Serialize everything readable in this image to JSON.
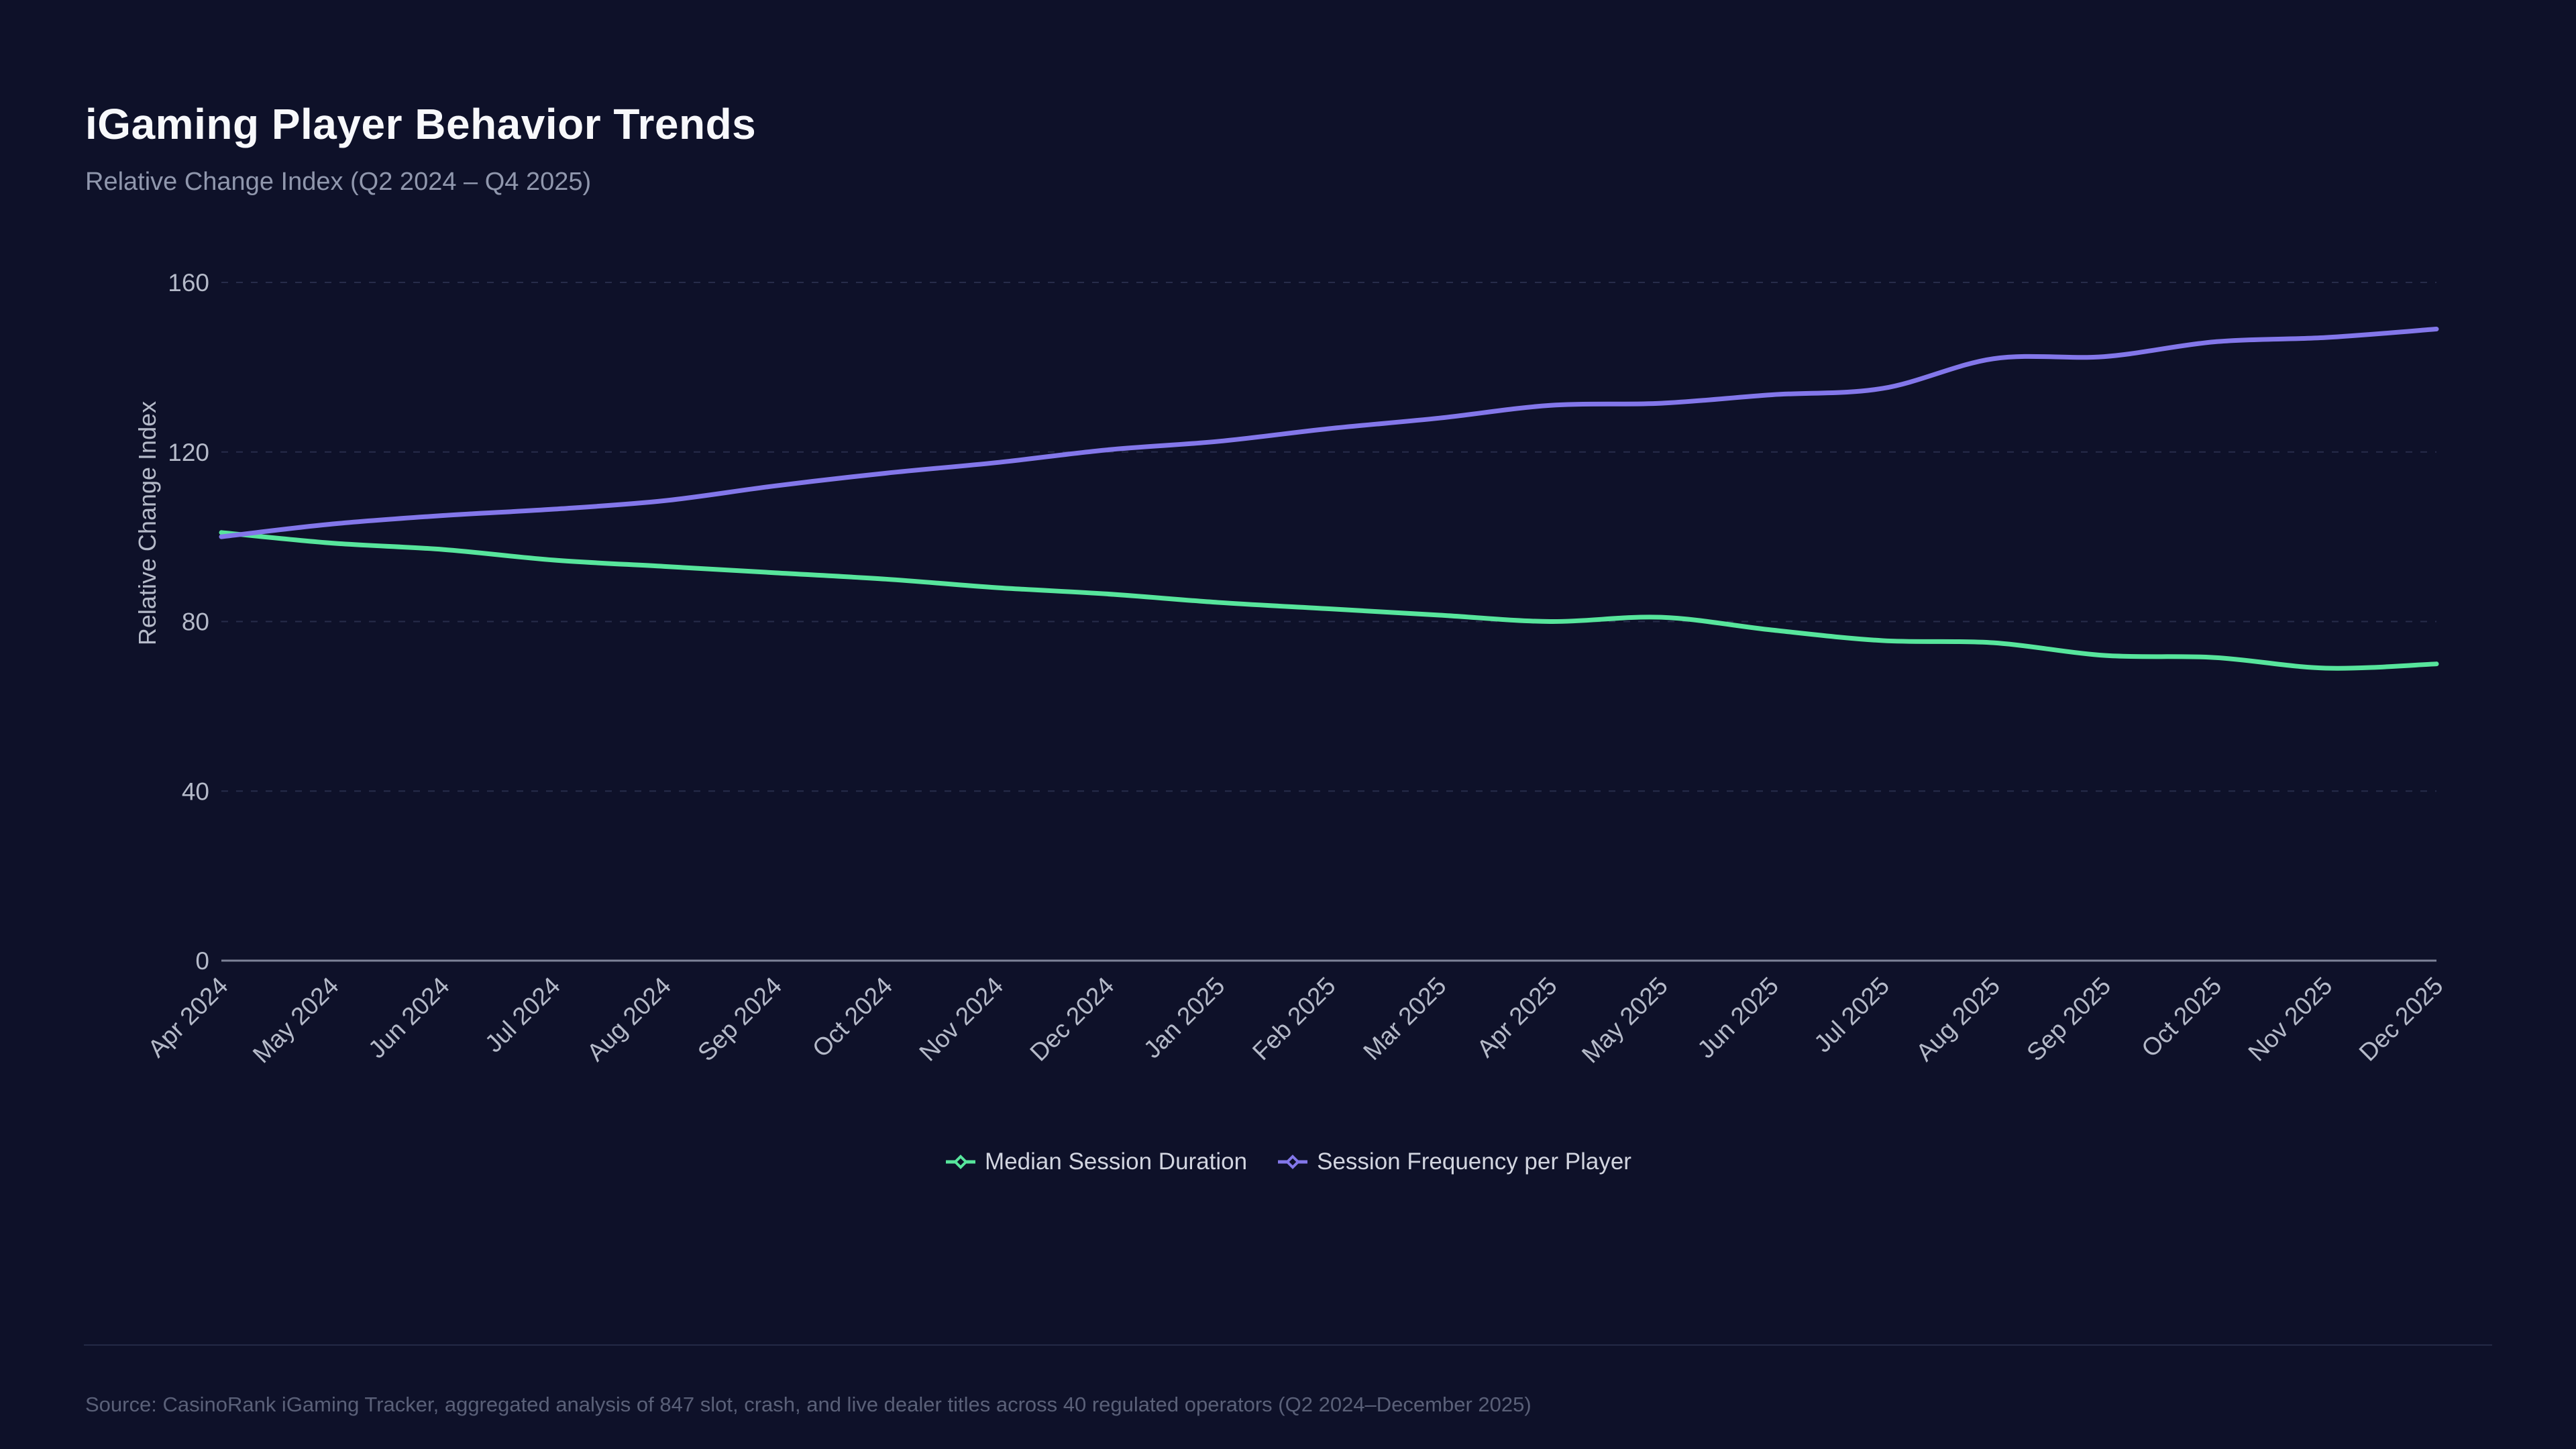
{
  "header": {
    "title": "iGaming Player Behavior Trends",
    "subtitle": "Relative Change Index (Q2 2024 – Q4 2025)"
  },
  "footer": {
    "source": "Source: CasinoRank iGaming Tracker, aggregated analysis of 847 slot, crash, and live dealer titles across 40 regulated operators (Q2 2024–December 2025)"
  },
  "theme": {
    "background": "#0e1129",
    "title_color": "#f7f8fb",
    "subtitle_color": "#9097ad",
    "axis_label_color": "#b5bac9",
    "axis_line_color": "#7d8298",
    "grid_line_color": "#272c4a",
    "legend_text_color": "#d2d5e0",
    "source_color": "#5a6078",
    "divider_color": "#242946"
  },
  "chart_data": {
    "type": "line",
    "title": "iGaming Player Behavior Trends",
    "subtitle": "Relative Change Index (Q2 2024 – Q4 2025)",
    "xlabel": "",
    "ylabel": "Relative Change Index",
    "ylim": [
      0,
      160
    ],
    "yticks": [
      0,
      40,
      80,
      120,
      160
    ],
    "grid": "horizontal-dashed",
    "legend_position": "bottom-center",
    "x": [
      "Apr 2024",
      "May 2024",
      "Jun 2024",
      "Jul 2024",
      "Aug 2024",
      "Sep 2024",
      "Oct 2024",
      "Nov 2024",
      "Dec 2024",
      "Jan 2025",
      "Feb 2025",
      "Mar 2025",
      "Apr 2025",
      "May 2025",
      "Jun 2025",
      "Jul 2025",
      "Aug 2025",
      "Sep 2025",
      "Oct 2025",
      "Nov 2025",
      "Dec 2025"
    ],
    "series": [
      {
        "name": "Median Session Duration",
        "color": "#57e59c",
        "values": [
          101,
          98.5,
          97,
          94.5,
          93,
          91.5,
          90,
          88,
          86.5,
          84.5,
          83,
          81.5,
          80,
          81,
          78,
          75.5,
          75,
          72,
          71.5,
          69,
          70
        ]
      },
      {
        "name": "Session Frequency per Player",
        "color": "#8377ea",
        "values": [
          100,
          103,
          105,
          106.5,
          108.5,
          112,
          115,
          117.5,
          120.5,
          122.5,
          125.5,
          128,
          131,
          131.5,
          133.5,
          135,
          142,
          142.5,
          146,
          147,
          149
        ]
      }
    ]
  }
}
